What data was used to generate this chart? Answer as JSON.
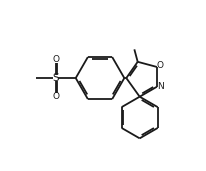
{
  "bg_color": "#ffffff",
  "line_color": "#1a1a1a",
  "line_width": 1.3,
  "dbo": 0.018,
  "figsize": [
    2.06,
    1.71
  ],
  "dpi": 100,
  "xlim": [
    0.0,
    2.06
  ],
  "ylim": [
    0.0,
    1.71
  ]
}
